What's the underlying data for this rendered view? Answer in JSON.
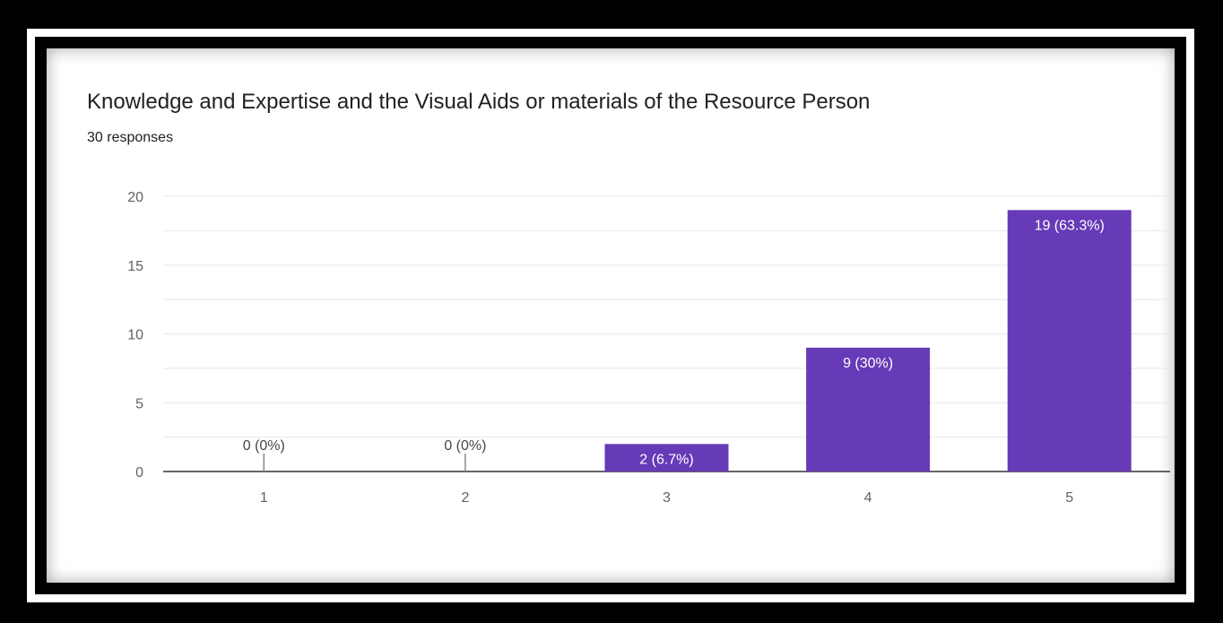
{
  "title": "Knowledge and Expertise and the Visual Aids or materials of the Resource Person",
  "subtitle": "30 responses",
  "colors": {
    "bar": "#673ab7",
    "grid": "#e8e8e8",
    "axis": "#333333"
  },
  "chart_data": {
    "type": "bar",
    "categories": [
      "1",
      "2",
      "3",
      "4",
      "5"
    ],
    "values": [
      0,
      0,
      2,
      9,
      19
    ],
    "data_labels": [
      "0 (0%)",
      "0 (0%)",
      "2 (6.7%)",
      "9 (30%)",
      "19 (63.3%)"
    ],
    "ylim": [
      0,
      20
    ],
    "yticks": [
      "0",
      "5",
      "10",
      "15",
      "20"
    ],
    "grid": true,
    "legend": "none"
  }
}
